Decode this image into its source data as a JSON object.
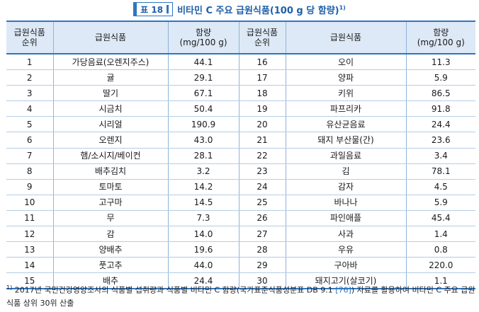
{
  "title": {
    "label": "표 18",
    "text": "비타민 C 주요 급원식품(100 g 당 함량)",
    "footnote_mark": "1)"
  },
  "table": {
    "headers": [
      "급원식품\n순위",
      "급원식품",
      "함량\n(mg/100 g)",
      "급원식품\n순위",
      "급원식품",
      "함량\n(mg/100 g)"
    ],
    "rows": [
      [
        "1",
        "가당음료(오렌지주스)",
        "44.1",
        "16",
        "오이",
        "11.3"
      ],
      [
        "2",
        "귤",
        "29.1",
        "17",
        "양파",
        "5.9"
      ],
      [
        "3",
        "딸기",
        "67.1",
        "18",
        "키위",
        "86.5"
      ],
      [
        "4",
        "시금치",
        "50.4",
        "19",
        "파프리카",
        "91.8"
      ],
      [
        "5",
        "시리얼",
        "190.9",
        "20",
        "유산균음료",
        "24.4"
      ],
      [
        "6",
        "오렌지",
        "43.0",
        "21",
        "돼지 부산물(간)",
        "23.6"
      ],
      [
        "7",
        "햄/소시지/베이컨",
        "28.1",
        "22",
        "과일음료",
        "3.4"
      ],
      [
        "8",
        "배추김치",
        "3.2",
        "23",
        "김",
        "78.1"
      ],
      [
        "9",
        "토마토",
        "14.2",
        "24",
        "감자",
        "4.5"
      ],
      [
        "10",
        "고구마",
        "14.5",
        "25",
        "바나나",
        "5.9"
      ],
      [
        "11",
        "무",
        "7.3",
        "26",
        "파인애플",
        "45.4"
      ],
      [
        "12",
        "감",
        "14.0",
        "27",
        "사과",
        "1.4"
      ],
      [
        "13",
        "양배추",
        "19.6",
        "28",
        "우유",
        "0.8"
      ],
      [
        "14",
        "풋고추",
        "44.0",
        "29",
        "구아바",
        "220.0"
      ],
      [
        "15",
        "배추",
        "24.4",
        "30",
        "돼지고기(살코기)",
        "1.1"
      ]
    ]
  },
  "footnote": {
    "mark": "1)",
    "text_before": "2017년 국민건강영양조사의 식품별 섭취량과 식품별 비타민 C 함량(국가표준식품성분표 DB 9.1 ",
    "ref": "[76]",
    "text_after": ") 자료를 활용하여 비타민 C 주요 급원식품 상위 30위 산출"
  },
  "colors": {
    "accent": "#2f76bf",
    "header_bg": "#dde9f6",
    "title_text": "#1f5fa8"
  }
}
